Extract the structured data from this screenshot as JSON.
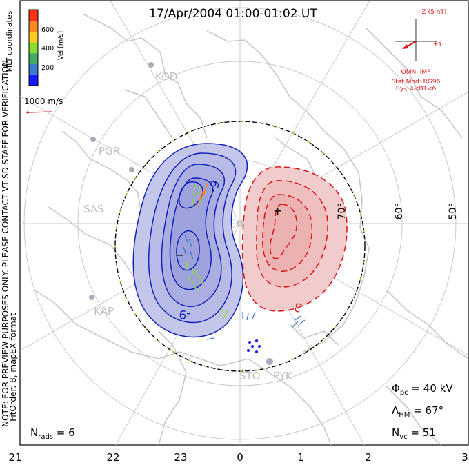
{
  "title": "17/Apr/2004 01:00-01:02 UT",
  "coordinates_label": "MLT coordinates",
  "colorbar": {
    "label": "Vel [m/s]",
    "ticks": [
      "200",
      "400",
      "600"
    ],
    "colors": [
      "#1a1aff",
      "#3a7ad0",
      "#44aa66",
      "#88dd33",
      "#ffcc22",
      "#ff8822",
      "#ff3311"
    ]
  },
  "velocity_scale": {
    "label": "1000 m/s"
  },
  "preview_note": "NOTE: FOR PREVIEW PURPOSES ONLY. PLEASE CONTACT VT-SD STAFF FOR VERIFICATION.",
  "fit_note": "FitOrder: 8, mapEX format",
  "imf": {
    "z_label": "+Z (5 nT)",
    "y_label": "+Y",
    "source": "OMNI IMF",
    "model": "Stat Mod: RG96",
    "condition": "By-, 4<BT<6",
    "color": "#dd1111"
  },
  "latitude_labels": [
    "70°",
    "60°",
    "50°"
  ],
  "contour_labels": {
    "negative": "-9",
    "positive": "3"
  },
  "extrema": {
    "min": "−",
    "max": "+"
  },
  "stations": [
    "KOD",
    "PGR",
    "SAS",
    "KAP",
    "STO",
    "PYK"
  ],
  "stats": {
    "phi_pc": {
      "symbol": "Φ",
      "sub": "pc",
      "value": " = 40 kV"
    },
    "lambda_hm": {
      "symbol": "Λ",
      "sub": "HM",
      "value": " = 67°"
    },
    "n_vc": {
      "symbol": "N",
      "sub": "vc",
      "value": " = 51"
    },
    "n_rads": {
      "symbol": "N",
      "sub": "rads",
      "value": " = 6"
    }
  },
  "mlt_axis": [
    "21",
    "22",
    "23",
    "0",
    "1",
    "2",
    "3"
  ],
  "potential_colors": {
    "negative": "#1122bb",
    "positive": "#dd1111"
  }
}
